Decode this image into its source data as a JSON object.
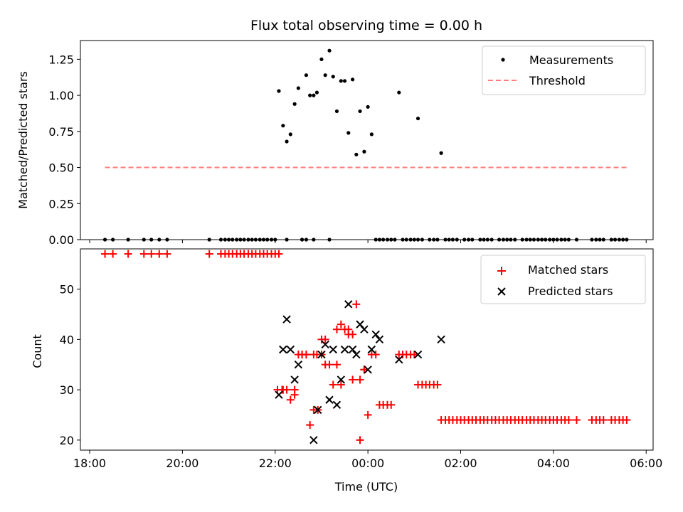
{
  "chart_data": [
    {
      "type": "scatter",
      "title": "Flux total observing time = 0.00 h",
      "ylabel": "Matched/Predicted stars",
      "xlabel": "",
      "xlim": [
        17.8,
        30.15
      ],
      "ylim": [
        0,
        1.38
      ],
      "yticks": [
        0.0,
        0.25,
        0.5,
        0.75,
        1.0,
        1.25
      ],
      "ytick_labels": [
        "0.00",
        "0.25",
        "0.50",
        "0.75",
        "1.00",
        "1.25"
      ],
      "xticks": [
        18,
        20,
        22,
        24,
        26,
        28,
        30
      ],
      "show_xtick_labels": false,
      "legend_position": "top-right",
      "series": [
        {
          "name": "Measurements",
          "style": "dot",
          "color": "#000000",
          "x": [
            18.33,
            18.5,
            18.83,
            19.17,
            19.33,
            19.5,
            19.67,
            20.58,
            20.83,
            20.92,
            21.0,
            21.08,
            21.17,
            21.25,
            21.33,
            21.42,
            21.5,
            21.58,
            21.67,
            21.75,
            21.83,
            21.92,
            22.0,
            22.08,
            22.17,
            22.25,
            22.33,
            22.42,
            22.5,
            22.58,
            22.67,
            22.75,
            22.83,
            22.9,
            23.0,
            23.08,
            23.17,
            23.25,
            23.33,
            23.42,
            23.5,
            23.58,
            23.67,
            23.75,
            23.83,
            23.92,
            24.0,
            24.08,
            24.17,
            24.25,
            24.33,
            24.67,
            25.08,
            25.58,
            22.25,
            22.58,
            22.67,
            22.83,
            23.17
          ],
          "y": [
            0,
            0,
            0,
            0,
            0,
            0,
            0,
            0,
            0,
            0,
            0,
            0,
            0,
            0,
            0,
            0,
            0,
            0,
            0,
            0,
            0,
            0,
            0,
            1.03,
            0.79,
            0.68,
            0.73,
            0.94,
            1.05,
            0,
            1.14,
            1.0,
            1.0,
            1.02,
            1.25,
            1.14,
            1.31,
            1.13,
            0.89,
            1.1,
            1.1,
            0.74,
            1.11,
            0.59,
            0.89,
            0.61,
            0.92,
            0.73,
            0,
            0,
            0,
            1.02,
            0.84,
            0.6,
            0,
            0,
            0,
            0,
            0
          ],
          "x_extra_zero": [
            24.42,
            24.5,
            24.58,
            24.75,
            24.83,
            24.92,
            25.0,
            25.08,
            25.17,
            25.33,
            25.42,
            25.5,
            25.67,
            25.75,
            25.83,
            25.92,
            26.08,
            26.17,
            26.25,
            26.42,
            26.5,
            26.58,
            26.67,
            26.83,
            26.92,
            27.0,
            27.08,
            27.17,
            27.33,
            27.42,
            27.5,
            27.58,
            27.67,
            27.75,
            27.83,
            27.92,
            28.0,
            28.08,
            28.17,
            28.25,
            28.33,
            28.5,
            28.83,
            28.92,
            29.0,
            29.08,
            29.25,
            29.33,
            29.42,
            29.5,
            29.58
          ]
        },
        {
          "name": "Threshold",
          "style": "dashed-line",
          "color": "#ff7f7f",
          "x": [
            18.33,
            29.58
          ],
          "y": [
            0.5,
            0.5
          ]
        }
      ]
    },
    {
      "type": "scatter",
      "title": "",
      "ylabel": "Count",
      "xlabel": "Time (UTC)",
      "xlim": [
        17.8,
        30.15
      ],
      "ylim": [
        18,
        58
      ],
      "yticks": [
        20,
        30,
        40,
        50
      ],
      "ytick_labels": [
        "20",
        "30",
        "40",
        "50"
      ],
      "xticks": [
        18,
        20,
        22,
        24,
        26,
        28,
        30
      ],
      "xtick_labels": [
        "18:00",
        "20:00",
        "22:00",
        "00:00",
        "02:00",
        "04:00",
        "06:00"
      ],
      "legend_position": "top-right",
      "series": [
        {
          "name": "Matched stars",
          "style": "plus",
          "color": "#ff0000",
          "x": [
            18.33,
            18.5,
            18.83,
            19.17,
            19.33,
            19.5,
            19.67,
            20.58,
            20.83,
            20.92,
            21.0,
            21.08,
            21.17,
            21.25,
            21.33,
            21.42,
            21.5,
            21.58,
            21.67,
            21.75,
            21.83,
            21.92,
            22.0,
            22.08,
            22.17,
            22.25,
            22.33,
            22.42,
            22.5,
            22.58,
            22.67,
            22.75,
            22.83,
            22.9,
            23.0,
            23.08,
            23.17,
            23.25,
            23.33,
            23.42,
            23.5,
            23.58,
            23.67,
            23.75,
            23.83,
            23.92,
            24.0,
            24.08,
            24.17,
            24.25,
            24.33,
            24.42,
            24.5,
            24.67,
            24.75,
            24.83,
            24.92,
            25.0,
            25.08,
            25.17,
            25.25,
            25.33,
            25.42,
            25.5,
            25.58,
            25.67,
            25.75,
            25.83,
            25.92,
            26.0,
            26.08,
            26.17,
            26.25,
            26.33,
            26.42,
            26.5,
            26.58,
            26.67,
            26.75,
            26.83,
            26.92,
            27.0,
            27.08,
            27.17,
            27.25,
            27.33,
            27.42,
            27.5,
            27.58,
            27.67,
            27.75,
            27.83,
            27.92,
            28.0,
            28.08,
            28.17,
            28.25,
            28.33,
            28.5,
            28.83,
            28.92,
            29.0,
            29.08,
            29.25,
            29.33,
            29.42,
            29.5,
            29.58,
            22.05,
            22.15,
            22.42,
            22.58,
            22.67,
            22.83,
            22.92,
            23.0,
            23.08,
            23.33,
            23.42,
            23.58,
            23.67,
            23.83,
            23.92
          ],
          "y": [
            57,
            57,
            57,
            57,
            57,
            57,
            57,
            57,
            57,
            57,
            57,
            57,
            57,
            57,
            57,
            57,
            57,
            57,
            57,
            57,
            57,
            57,
            57,
            57,
            30,
            30,
            28,
            30,
            37,
            37,
            37,
            23,
            26,
            37,
            40,
            35,
            35,
            31,
            42,
            43,
            42,
            41,
            32,
            47,
            20,
            34,
            25,
            37,
            37,
            27,
            27,
            27,
            27,
            37,
            37,
            37,
            37,
            37,
            31,
            31,
            31,
            31,
            31,
            31,
            24,
            24,
            24,
            24,
            24,
            24,
            24,
            24,
            24,
            24,
            24,
            24,
            24,
            24,
            24,
            24,
            24,
            24,
            24,
            24,
            24,
            24,
            24,
            24,
            24,
            24,
            24,
            24,
            24,
            24,
            24,
            24,
            24,
            24,
            24,
            24,
            24,
            24,
            24,
            24,
            24,
            24,
            24,
            24,
            30,
            30,
            29,
            37,
            37,
            37,
            26,
            37,
            40,
            35,
            31,
            42,
            41,
            32,
            34
          ]
        },
        {
          "name": "Predicted stars",
          "style": "x",
          "color": "#000000",
          "x": [
            22.08,
            22.17,
            22.25,
            22.33,
            22.42,
            22.5,
            22.83,
            22.92,
            23.0,
            23.08,
            23.17,
            23.25,
            23.33,
            23.42,
            23.5,
            23.58,
            23.67,
            23.75,
            23.83,
            23.92,
            24.0,
            24.08,
            24.17,
            24.25,
            24.67,
            25.08,
            25.58
          ],
          "y": [
            29,
            38,
            44,
            38,
            32,
            35,
            20,
            26,
            37,
            39,
            28,
            38,
            27,
            32,
            38,
            47,
            38,
            37,
            43,
            42,
            34,
            38,
            41,
            40,
            36,
            37,
            40
          ]
        }
      ]
    }
  ]
}
